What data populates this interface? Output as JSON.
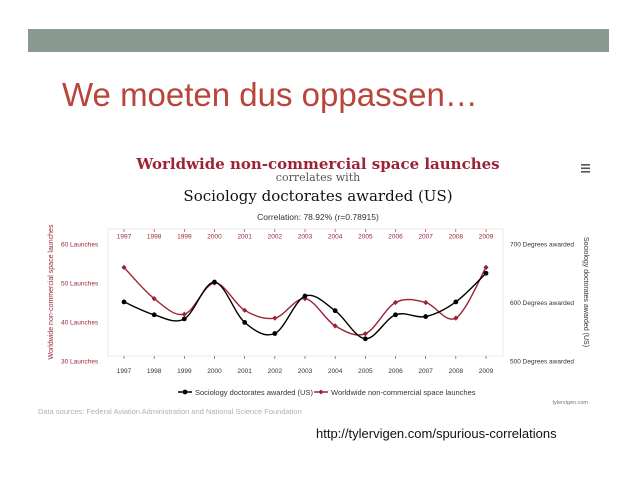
{
  "slide": {
    "title": "We moeten dus oppassen…",
    "source_url": "http://tylervigen.com/spurious-correlations",
    "band_color": "#8a9a91",
    "title_color": "#b8443a"
  },
  "chart_data": {
    "type": "line",
    "title": "Worldwide non-commercial space launches",
    "subtitle": "correlates with",
    "title2": "Sociology doctorates awarded (US)",
    "correlation": "Correlation: 78.92% (r=0.78915)",
    "categories": [
      "1997",
      "1998",
      "1999",
      "2000",
      "2001",
      "2002",
      "2003",
      "2004",
      "2005",
      "2006",
      "2007",
      "2008",
      "2009"
    ],
    "y_left": {
      "label": "Worldwide non-commercial space launches",
      "ticks": [
        "30 Launches",
        "40 Launches",
        "50 Launches",
        "60 Launches"
      ],
      "tick_values": [
        30,
        40,
        50,
        60
      ],
      "range": [
        30,
        60
      ]
    },
    "y_right": {
      "label": "Sociology doctorates awarded (US)",
      "ticks": [
        "500 Degrees awarded",
        "600 Degrees awarded",
        "700 Degrees awarded"
      ],
      "tick_values": [
        500,
        600,
        700
      ],
      "range": [
        500,
        700
      ]
    },
    "series": [
      {
        "name": "Sociology doctorates awarded (US)",
        "axis": "right",
        "color": "#000000",
        "values": [
          601,
          579,
          572,
          635,
          566,
          547,
          611,
          586,
          538,
          579,
          576,
          601,
          650
        ]
      },
      {
        "name": "Worldwide non-commercial space launches",
        "axis": "left",
        "color": "#9b2335",
        "values": [
          54,
          46,
          42,
          50,
          43,
          41,
          46,
          39,
          37,
          45,
          45,
          41,
          54
        ]
      }
    ],
    "grid": false,
    "legend": "bottom",
    "watermark": "tylervigen.com",
    "data_sources": "Data sources: Federal Aviation Administration and National Science Foundation",
    "menu_icon": "hamburger-menu-icon",
    "title_color": "#9b2335"
  }
}
